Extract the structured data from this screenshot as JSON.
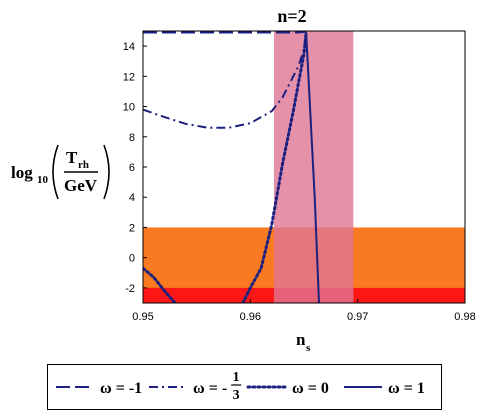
{
  "chart_data": {
    "type": "line",
    "title": "n=2",
    "xlabel": "n",
    "xlabel_sub": "s",
    "ylabel": {
      "log": "log",
      "base": "10",
      "numerator": "T",
      "numerator_sub": "rh",
      "denominator": "GeV"
    },
    "xlim": [
      0.95,
      0.98
    ],
    "ylim": [
      -3,
      15
    ],
    "xticks": [
      {
        "value": 0.95,
        "label": "0.95"
      },
      {
        "value": 0.96,
        "label": "0.96"
      },
      {
        "value": 0.97,
        "label": "0.97"
      },
      {
        "value": 0.98,
        "label": "0.98"
      }
    ],
    "yticks": [
      {
        "value": -2,
        "label": "-2"
      },
      {
        "value": 0,
        "label": "0"
      },
      {
        "value": 2,
        "label": "2"
      },
      {
        "value": 4,
        "label": "4"
      },
      {
        "value": 6,
        "label": "6"
      },
      {
        "value": 8,
        "label": "8"
      },
      {
        "value": 10,
        "label": "10"
      },
      {
        "value": 12,
        "label": "12"
      },
      {
        "value": 14,
        "label": "14"
      }
    ],
    "grid": false,
    "legend_position": "bottom",
    "bands": [
      {
        "kind": "horizontal",
        "y": [
          -3,
          2
        ],
        "color": "#f97a20"
      },
      {
        "kind": "horizontal",
        "y": [
          -3,
          -2
        ],
        "color": "#ff1717"
      },
      {
        "kind": "vertical",
        "x": [
          0.9622,
          0.9696
        ],
        "color": "#e07595",
        "opacity": 0.8
      }
    ],
    "series": [
      {
        "label_main": "ω = -1",
        "label_frac": null,
        "dash": "dashed",
        "color": "#1c2180",
        "x": [
          0.95,
          0.955,
          0.96,
          0.9645,
          0.9652
        ],
        "y": [
          14.9,
          14.9,
          14.9,
          14.9,
          14.95
        ]
      },
      {
        "label_main": "ω = -",
        "label_frac": {
          "num": "1",
          "den": "3"
        },
        "dash": "dashdot",
        "color": "#1c2180",
        "x": [
          0.95,
          0.952,
          0.954,
          0.956,
          0.958,
          0.96,
          0.962,
          0.963,
          0.964,
          0.9645,
          0.965,
          0.9652
        ],
        "y": [
          9.8,
          9.3,
          8.85,
          8.6,
          8.6,
          8.9,
          9.7,
          10.6,
          12.0,
          12.7,
          13.8,
          14.9
        ]
      },
      {
        "label_main": "ω = 0",
        "label_frac": null,
        "dash": "dotted",
        "color": "#1c2180",
        "x": [
          0.9593,
          0.96,
          0.961,
          0.962,
          0.963,
          0.964,
          0.9645,
          0.965,
          0.9652
        ],
        "y": [
          -3,
          -2.0,
          -0.7,
          2.2,
          6.2,
          9.7,
          11.6,
          13.5,
          14.9
        ]
      },
      {
        "label_main": "ω = 1",
        "label_frac": null,
        "dash": "solid",
        "color": "#1c2180",
        "x": [
          0.9652,
          0.966,
          0.9664
        ],
        "y": [
          14.95,
          4.0,
          -3
        ]
      },
      {
        "label_main": null,
        "label_frac": null,
        "in_legend": false,
        "dash": "dotted",
        "color": "#1c2180",
        "x": [
          0.95,
          0.951,
          0.952,
          0.953
        ],
        "y": [
          -0.7,
          -1.3,
          -2.2,
          -3
        ]
      }
    ]
  }
}
